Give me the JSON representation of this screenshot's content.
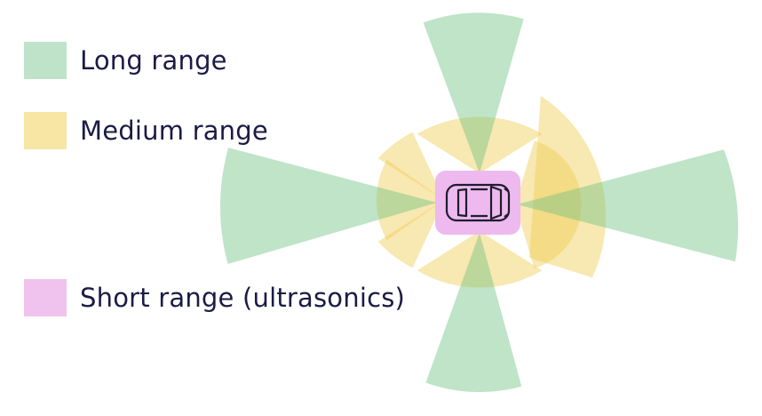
{
  "legend": [
    {
      "key": "long",
      "label": "Long range",
      "color": "#bfe3c8"
    },
    {
      "key": "medium",
      "label": "Medium range",
      "color": "#f7e6a4"
    },
    {
      "key": "short",
      "label": "Short range (ultrasonics)",
      "color": "#f0c3ee"
    }
  ],
  "zone_colors": {
    "long": "rgba(112, 196, 131, 0.45)",
    "medium": "rgba(240, 205, 82, 0.45)",
    "short": "#edb9ef"
  }
}
